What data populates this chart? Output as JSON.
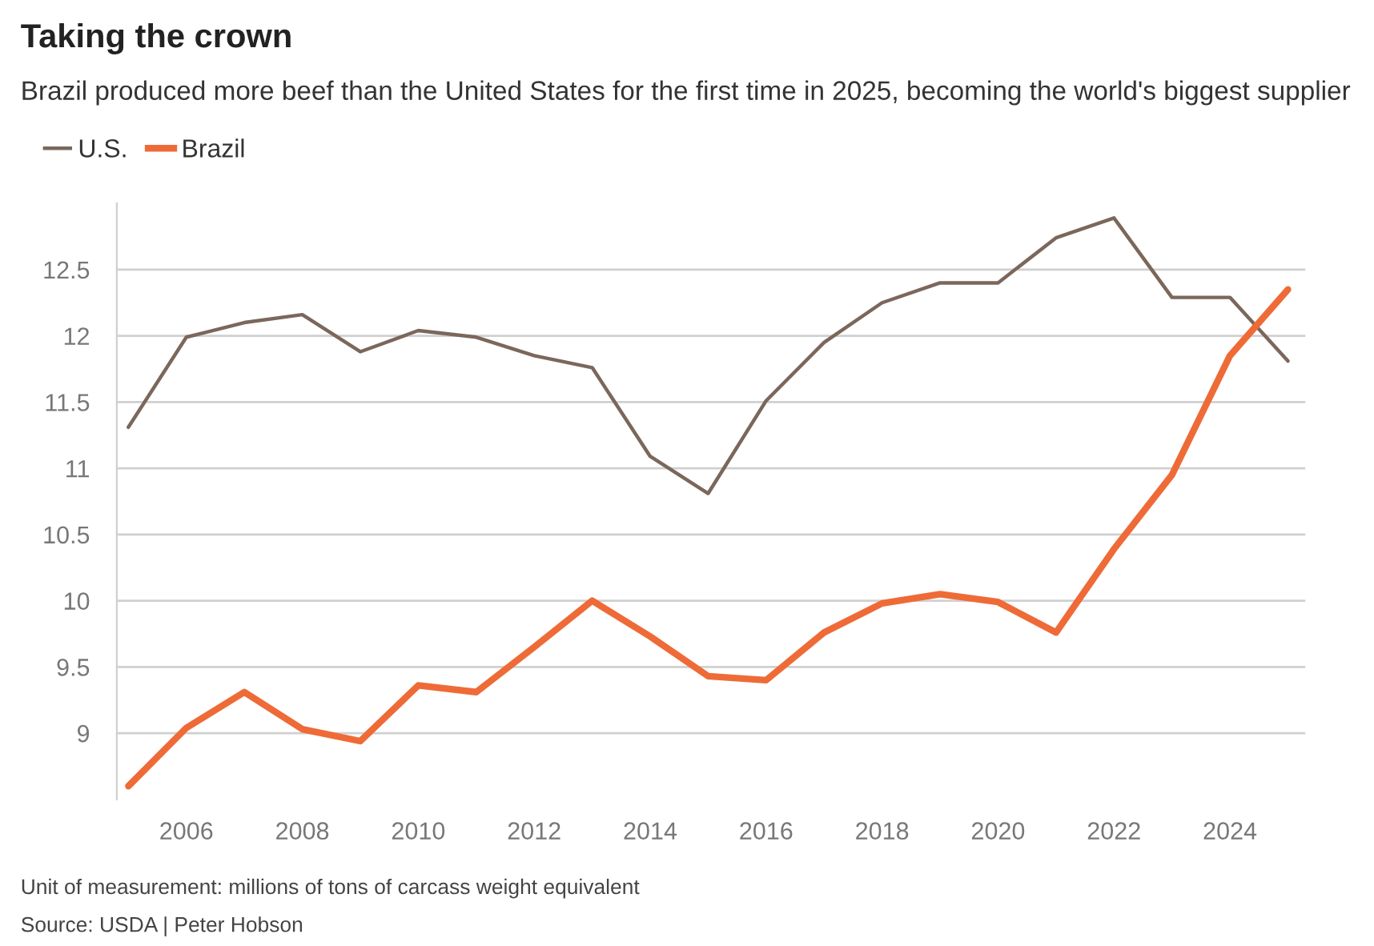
{
  "chart_data": {
    "type": "line",
    "title": "Taking the crown",
    "subtitle": "Brazil produced more beef than the United States for the first time in 2025, becoming the world's biggest supplier",
    "x": [
      2005,
      2006,
      2007,
      2008,
      2009,
      2010,
      2011,
      2012,
      2013,
      2014,
      2015,
      2016,
      2017,
      2018,
      2019,
      2020,
      2021,
      2022,
      2023,
      2024,
      2025
    ],
    "series": [
      {
        "name": "U.S.",
        "color": "#7b675b",
        "values": [
          11.31,
          11.99,
          12.1,
          12.16,
          11.88,
          12.04,
          11.99,
          11.85,
          11.76,
          11.09,
          10.81,
          11.51,
          11.95,
          12.25,
          12.4,
          12.4,
          12.74,
          12.89,
          12.29,
          12.29,
          11.81
        ]
      },
      {
        "name": "Brazil",
        "color": "#ee6b38",
        "values": [
          8.6,
          9.04,
          9.31,
          9.03,
          8.94,
          9.36,
          9.31,
          9.65,
          10.0,
          9.73,
          9.43,
          9.4,
          9.76,
          9.98,
          10.05,
          9.99,
          9.76,
          10.39,
          10.95,
          11.85,
          12.35
        ]
      }
    ],
    "xlim": [
      2004.8,
      2025.3
    ],
    "xticks": [
      2006,
      2008,
      2010,
      2012,
      2014,
      2016,
      2018,
      2020,
      2022,
      2024
    ],
    "ylim": [
      8.5,
      13.0
    ],
    "yticks": [
      9,
      9.5,
      10,
      10.5,
      11,
      11.5,
      12,
      12.5
    ],
    "grid": "y",
    "legend": "top left",
    "annotations": [
      "Unit of measurement: millions of tons of carcass weight equivalent",
      "Source: USDA | Peter Hobson"
    ]
  }
}
